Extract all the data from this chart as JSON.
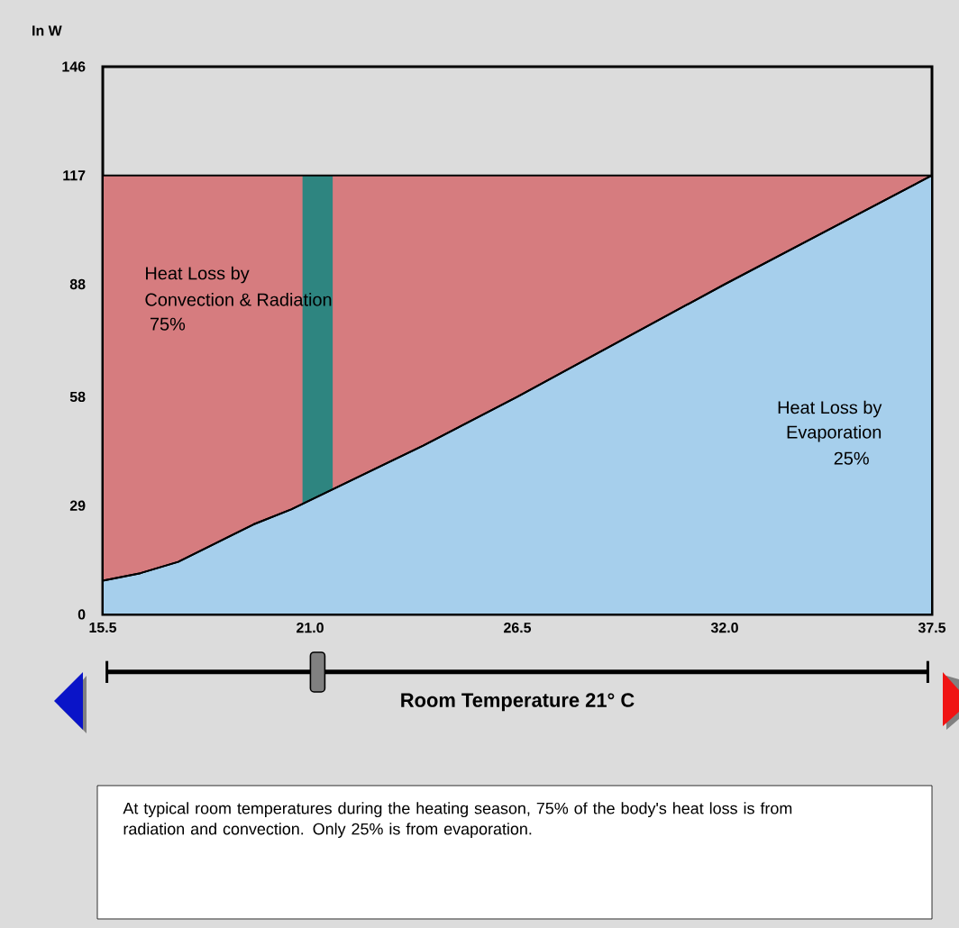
{
  "chart_data": {
    "type": "area",
    "stacked": true,
    "xlabel": "Room Temperature 21° C",
    "ylabel": "In W",
    "x": [
      15.5,
      16.5,
      17.5,
      18.5,
      19.5,
      20.5,
      24,
      26.5,
      32,
      37.5
    ],
    "series": [
      {
        "color": "#a6cfec",
        "values": [
          9,
          11,
          14,
          19,
          24,
          28,
          45,
          58,
          88,
          117
        ]
      },
      {
        "color": "#d67c7f",
        "values": [
          108,
          106,
          103,
          98,
          93,
          89,
          72,
          59,
          29,
          0
        ]
      }
    ],
    "xlim": [
      15.5,
      37.5
    ],
    "ylim": [
      0,
      146
    ],
    "xticks": [
      15.5,
      {
        "value": 21,
        "label": "21.0"
      },
      26.5,
      {
        "value": 32,
        "label": "32.0"
      },
      37.5
    ],
    "yticks": [
      0,
      29,
      58,
      88,
      117,
      146
    ],
    "bands": [
      {
        "axis": "x",
        "from": 20.8,
        "to": 21.6,
        "color": "#2e8580"
      }
    ],
    "annotations": [
      "Heat Loss by",
      "Convection & Radiation",
      "75%",
      "Heat Loss by",
      "Evaporation",
      "25%",
      "At typical room temperatures during the heating season, 75% of the body's heat loss is from radiation and convection. Only 25% is from evaporation."
    ],
    "grid": false
  }
}
